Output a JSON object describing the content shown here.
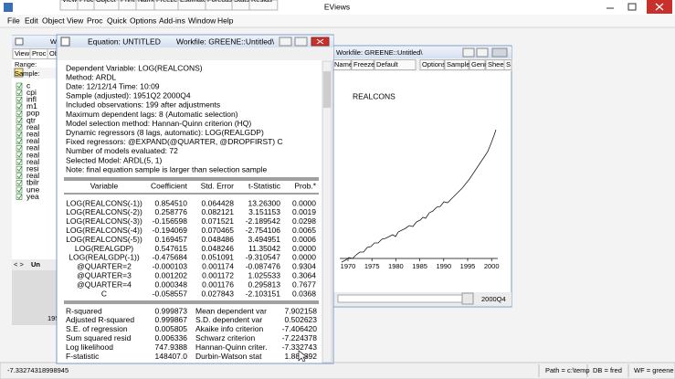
{
  "app": {
    "title": "EViews",
    "menu": [
      "File",
      "Edit",
      "Object",
      "View",
      "Proc",
      "Quick",
      "Options",
      "Add-ins",
      "Window",
      "Help"
    ]
  },
  "workfile_window": {
    "title": "W",
    "toolbar": [
      "View",
      "Proc",
      "Ob"
    ],
    "range_label": "Range:",
    "sample_label": "Sample:",
    "items": [
      "c",
      "cpi",
      "infl",
      "m1",
      "pop",
      "qtr",
      "real",
      "real",
      "real",
      "real",
      "real",
      "real",
      "resi",
      "real",
      "tbilr",
      "une",
      "yea"
    ],
    "tab_nav": "< >",
    "tab": "Un",
    "sample_display": "195"
  },
  "graph_window": {
    "title": "Workfile: GREENE::Untitled\\",
    "toolbar": [
      "Name",
      "Freeze",
      "Default",
      "Options",
      "Sample",
      "Genr",
      "Sheet",
      "S"
    ],
    "graph_title": "REALCONS",
    "x_labels": [
      "1970",
      "1975",
      "1980",
      "1985",
      "1990",
      "1995",
      "2000"
    ],
    "status": "2000Q4"
  },
  "equation_window": {
    "title": "Equation: UNTITLED",
    "workfile": "Workfile: GREENE::Untitled\\",
    "toolbar": [
      "View",
      "Proc",
      "Object",
      "Print",
      "Name",
      "Freeze",
      "Estimate",
      "Forecast",
      "Stats",
      "Resids"
    ],
    "header": [
      "Dependent Variable: LOG(REALCONS)",
      "Method: ARDL",
      "Date: 12/12/14   Time: 10:09",
      "Sample (adjusted): 1951Q2 2000Q4",
      "Included observations: 199 after adjustments",
      "Maximum dependent lags: 8 (Automatic selection)",
      "Model selection method: Hannan-Quinn criterion (HQ)",
      "Dynamic regressors (8 lags, automatic): LOG(REALGDP)",
      "Fixed regressors: @EXPAND(@QUARTER, @DROPFIRST) C",
      "Number of models evaluated: 72",
      "Selected Model: ARDL(5, 1)",
      "Note: final equation sample is larger than selection sample"
    ],
    "table": {
      "columns": [
        "Variable",
        "Coefficient",
        "Std. Error",
        "t-Statistic",
        "Prob.*"
      ],
      "rows": [
        [
          "LOG(REALCONS(-1))",
          "0.854510",
          "0.064428",
          "13.26300",
          "0.0000"
        ],
        [
          "LOG(REALCONS(-2))",
          "0.258776",
          "0.082121",
          "3.151153",
          "0.0019"
        ],
        [
          "LOG(REALCONS(-3))",
          "-0.156598",
          "0.071521",
          "-2.189542",
          "0.0298"
        ],
        [
          "LOG(REALCONS(-4))",
          "-0.194069",
          "0.070465",
          "-2.754106",
          "0.0065"
        ],
        [
          "LOG(REALCONS(-5))",
          "0.169457",
          "0.048486",
          "3.494951",
          "0.0006"
        ],
        [
          "LOG(REALGDP)",
          "0.547615",
          "0.048246",
          "11.35042",
          "0.0000"
        ],
        [
          "LOG(REALGDP(-1))",
          "-0.475684",
          "0.051091",
          "-9.310547",
          "0.0000"
        ],
        [
          "@QUARTER=2",
          "-0.000103",
          "0.001174",
          "-0.087476",
          "0.9304"
        ],
        [
          "@QUARTER=3",
          "0.001202",
          "0.001172",
          "1.025533",
          "0.3064"
        ],
        [
          "@QUARTER=4",
          "0.000348",
          "0.001176",
          "0.295813",
          "0.7677"
        ],
        [
          "C",
          "-0.058557",
          "0.027843",
          "-2.103151",
          "0.0368"
        ]
      ]
    },
    "stats": [
      [
        "R-squared",
        "0.999873",
        "Mean dependent var",
        "7.902158"
      ],
      [
        "Adjusted R-squared",
        "0.999867",
        "S.D. dependent var",
        "0.502623"
      ],
      [
        "S.E. of regression",
        "0.005805",
        "Akaike info criterion",
        "-7.406420"
      ],
      [
        "Sum squared resid",
        "0.006336",
        "Schwarz criterion",
        "-7.224378"
      ],
      [
        "Log likelihood",
        "747.9388",
        "Hannan-Quinn criter.",
        "-7.332743"
      ],
      [
        "F-statistic",
        "148407.0",
        "Durbin-Watson stat",
        "1.885392"
      ]
    ]
  },
  "status_bar": {
    "value": "-7.33274318998945",
    "path": "Path = c:\\temp",
    "db": "DB = fred",
    "wf": "WF = greene"
  }
}
